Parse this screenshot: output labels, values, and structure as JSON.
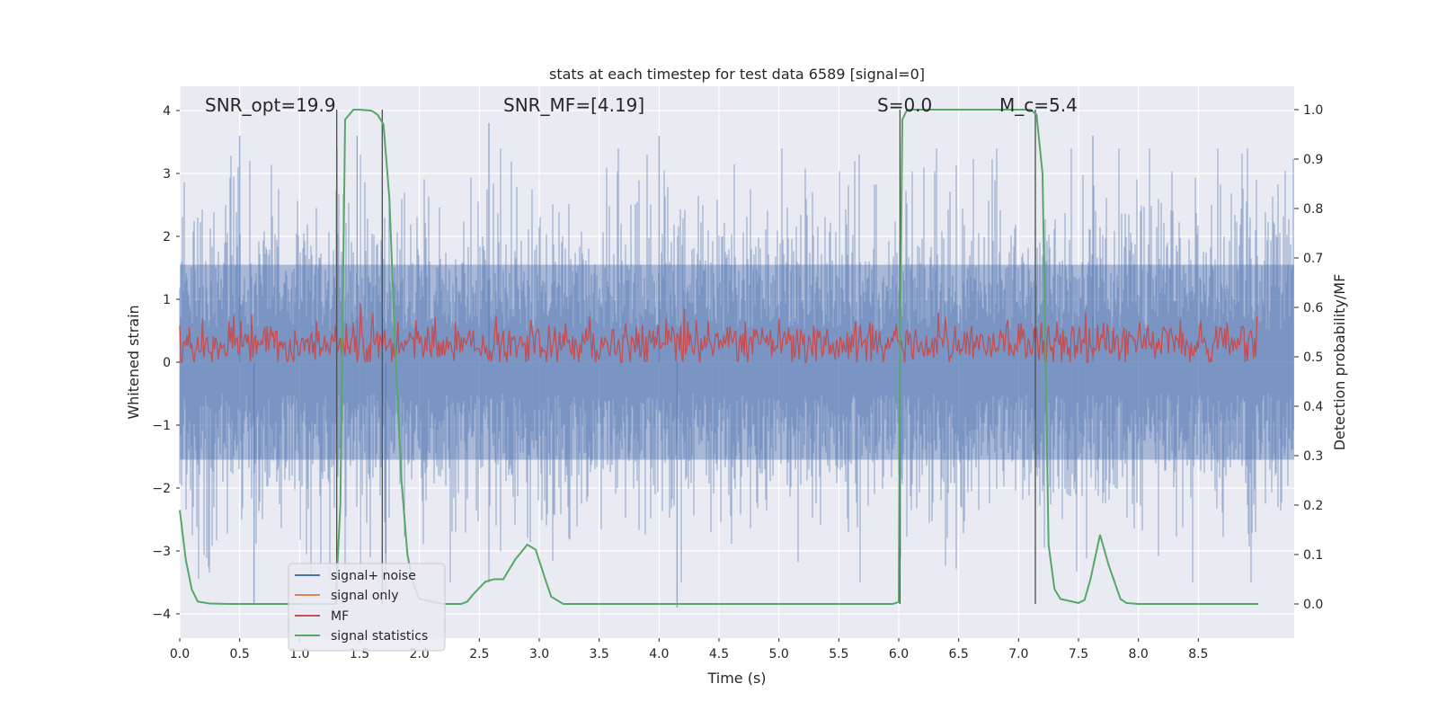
{
  "chart_data": {
    "type": "line",
    "title": "stats at each timestep for test data 6589 [signal=0]",
    "xlabel": "Time (s)",
    "ylabel_left": "Whitened strain",
    "ylabel_right": "Detection probability/MF",
    "xlim": [
      0,
      9.0
    ],
    "ylim_left": [
      -4.3,
      4.4
    ],
    "ylim_right": [
      -0.05,
      1.04
    ],
    "x_ticks": [
      "0.0",
      "0.5",
      "1.0",
      "1.5",
      "2.0",
      "2.5",
      "3.0",
      "3.5",
      "4.0",
      "4.5",
      "5.0",
      "5.5",
      "6.0",
      "6.5",
      "7.0",
      "7.5",
      "8.0",
      "8.5"
    ],
    "x_tick_values": [
      0,
      0.5,
      1,
      1.5,
      2,
      2.5,
      3,
      3.5,
      4,
      4.5,
      5,
      5.5,
      6,
      6.5,
      7,
      7.5,
      8,
      8.5
    ],
    "y_left_ticks": [
      "4",
      "3",
      "2",
      "1",
      "0",
      "−1",
      "−2",
      "−3",
      "−4"
    ],
    "y_left_tick_values": [
      4,
      3,
      2,
      1,
      0,
      -1,
      -2,
      -3,
      -4
    ],
    "y_right_ticks": [
      "1.0",
      "0.9",
      "0.8",
      "0.7",
      "0.6",
      "0.5",
      "0.4",
      "0.3",
      "0.2",
      "0.1",
      "0.0"
    ],
    "y_right_tick_values": [
      1.0,
      0.9,
      0.8,
      0.7,
      0.6,
      0.5,
      0.4,
      0.3,
      0.2,
      0.1,
      0.0
    ],
    "grid": true,
    "legend_position": "lower-left",
    "annotations": [
      {
        "text": "SNR_opt=19.9",
        "x": 0.2
      },
      {
        "text": "SNR_MF=[4.19]",
        "x": 2.6
      },
      {
        "text": "S=0.0",
        "x": 5.6
      },
      {
        "text": "M_c=5.4",
        "x": 6.6
      }
    ],
    "vertical_lines_x": [
      1.31,
      1.69,
      6.01,
      7.14
    ],
    "series": [
      {
        "name": "signal+ noise",
        "color": "#4c72b0",
        "axis": "left",
        "kind": "noise",
        "x_range": [
          0,
          9.0
        ],
        "typical_abs_max": 2.2,
        "peak_values": [
          3.6,
          3.6,
          3.8,
          3.6,
          3.6,
          -3.85,
          -3.7,
          -3.9
        ]
      },
      {
        "name": "signal only",
        "color": "#dd8452",
        "axis": "left",
        "kind": "flat",
        "values": []
      },
      {
        "name": "MF",
        "color": "#c44e52",
        "axis": "left",
        "kind": "noise_band",
        "x_range": [
          0,
          9.0
        ],
        "band": [
          0.0,
          0.95
        ],
        "mean": 0.3
      },
      {
        "name": "signal statistics",
        "color": "#55a868",
        "axis": "right",
        "x": [
          0.0,
          0.05,
          0.1,
          0.15,
          0.25,
          0.4,
          1.25,
          1.3,
          1.34,
          1.38,
          1.45,
          1.5,
          1.6,
          1.65,
          1.7,
          1.75,
          1.8,
          1.85,
          1.9,
          1.95,
          2.0,
          2.2,
          2.35,
          2.4,
          2.45,
          2.55,
          2.62,
          2.7,
          2.8,
          2.9,
          2.97,
          3.05,
          3.1,
          3.2,
          3.5,
          5.5,
          5.95,
          6.0,
          6.01,
          6.03,
          6.07,
          6.15,
          7.0,
          7.1,
          7.15,
          7.2,
          7.25,
          7.3,
          7.35,
          7.5,
          7.55,
          7.6,
          7.68,
          7.75,
          7.85,
          7.9,
          8.0,
          9.0
        ],
        "y": [
          0.19,
          0.09,
          0.03,
          0.005,
          0.001,
          0.0,
          0.0,
          0.0,
          0.2,
          0.98,
          1.0,
          1.0,
          0.998,
          0.99,
          0.97,
          0.82,
          0.5,
          0.25,
          0.1,
          0.04,
          0.01,
          0.0,
          0.0,
          0.005,
          0.02,
          0.045,
          0.05,
          0.05,
          0.09,
          0.12,
          0.11,
          0.05,
          0.015,
          0.0,
          0.0,
          0.0,
          0.0,
          0.004,
          0.5,
          0.98,
          1.0,
          1.0,
          1.0,
          1.0,
          0.99,
          0.87,
          0.12,
          0.03,
          0.01,
          0.002,
          0.008,
          0.05,
          0.14,
          0.08,
          0.01,
          0.002,
          0.0,
          0.0
        ]
      }
    ]
  }
}
